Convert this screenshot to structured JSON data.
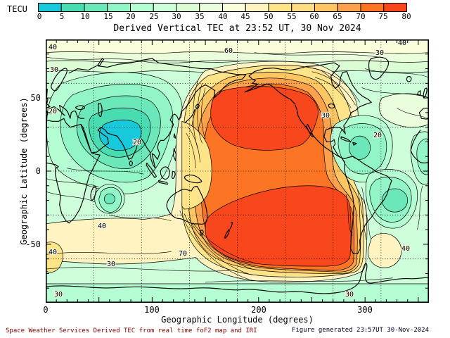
{
  "footer": {
    "left": "Space Weather Services Derived TEC from real time foF2 map and IRI",
    "right": "Figure generated 23:57UT 30-Nov-2024"
  },
  "chart_data": {
    "type": "heatmap",
    "title": "Derived Vertical TEC at 23:52 UT, 30 Nov 2024",
    "xlabel": "Geographic Longitude (degrees)",
    "ylabel": "Geographic Latitude (degrees)",
    "xlim": [
      0,
      360
    ],
    "ylim": [
      -90,
      90
    ],
    "xtick_labels": [
      "0",
      "100",
      "200",
      "300"
    ],
    "ytick_labels": [
      "50",
      "0",
      "-50"
    ],
    "grid": "dotted graticule",
    "graticule": {
      "lon_step_deg": 45,
      "lat_step_deg": 30,
      "style": "dotted"
    },
    "contour_interval_tecu": 5,
    "colorbar": {
      "unit_label": "TECU",
      "levels": [
        0,
        5,
        10,
        15,
        20,
        25,
        30,
        35,
        40,
        45,
        50,
        55,
        60,
        65,
        70,
        75,
        80
      ],
      "tick_labels": [
        "0",
        "5",
        "10",
        "15",
        "20",
        "25",
        "30",
        "35",
        "40",
        "45",
        "50",
        "55",
        "60",
        "65",
        "70",
        "75",
        "80"
      ],
      "colors": [
        "#18C9DB",
        "#49DCB1",
        "#6CE7BA",
        "#91F5C7",
        "#B5FDD2",
        "#CDFED9",
        "#DAFDD4",
        "#EAFEDB",
        "#FAFEDA",
        "#FEF3C1",
        "#FEE489",
        "#FDDC83",
        "#FDC662",
        "#FCA24C",
        "#FB7524",
        "#F9471D"
      ]
    },
    "lon_grid": [
      0,
      45,
      90,
      135,
      180,
      225,
      270,
      315,
      360
    ],
    "lat_grid": [
      75,
      60,
      30,
      0,
      -30,
      -60,
      -75
    ],
    "tec_values_grid_tecu": [
      [
        40,
        35,
        28,
        35,
        50,
        55,
        35,
        30,
        40
      ],
      [
        32,
        22,
        15,
        35,
        65,
        78,
        32,
        28,
        32
      ],
      [
        25,
        10,
        5,
        30,
        70,
        78,
        30,
        20,
        25
      ],
      [
        25,
        18,
        20,
        45,
        60,
        70,
        55,
        15,
        25
      ],
      [
        32,
        30,
        25,
        50,
        78,
        78,
        72,
        30,
        32
      ],
      [
        45,
        40,
        32,
        60,
        78,
        78,
        60,
        42,
        45
      ],
      [
        32,
        30,
        30,
        38,
        45,
        48,
        38,
        30,
        32
      ]
    ],
    "contour_labels": [
      {
        "text": "40",
        "lon": 7,
        "lat": 83
      },
      {
        "text": "30",
        "lon": 8,
        "lat": 68
      },
      {
        "text": "20",
        "lon": 7,
        "lat": 40
      },
      {
        "text": "20",
        "lon": 86,
        "lat": 18
      },
      {
        "text": "60",
        "lon": 172,
        "lat": 81
      },
      {
        "text": "30",
        "lon": 314,
        "lat": 79
      },
      {
        "text": "40",
        "lon": 335,
        "lat": 86
      },
      {
        "text": "30",
        "lon": 263,
        "lat": 37
      },
      {
        "text": "20",
        "lon": 312,
        "lat": 23
      },
      {
        "text": "70",
        "lon": 129,
        "lat": -58
      },
      {
        "text": "30",
        "lon": 61,
        "lat": -65
      },
      {
        "text": "40",
        "lon": 53,
        "lat": -39
      },
      {
        "text": "40",
        "lon": 338,
        "lat": -54
      },
      {
        "text": "30",
        "lon": 285,
        "lat": -86
      },
      {
        "text": "30",
        "lon": 12,
        "lat": -86
      },
      {
        "text": "40",
        "lon": 7,
        "lat": -57
      }
    ],
    "features": [
      "low TEC (0-15 TECU) cell over central Asia (nightside)",
      "high TEC (75-80 TECU) cell over north Pacific / Alaska",
      "high TEC (75-80 TECU) cell over south Pacific southeast of Australia",
      "dense contour bundles along day/night terminator"
    ]
  }
}
